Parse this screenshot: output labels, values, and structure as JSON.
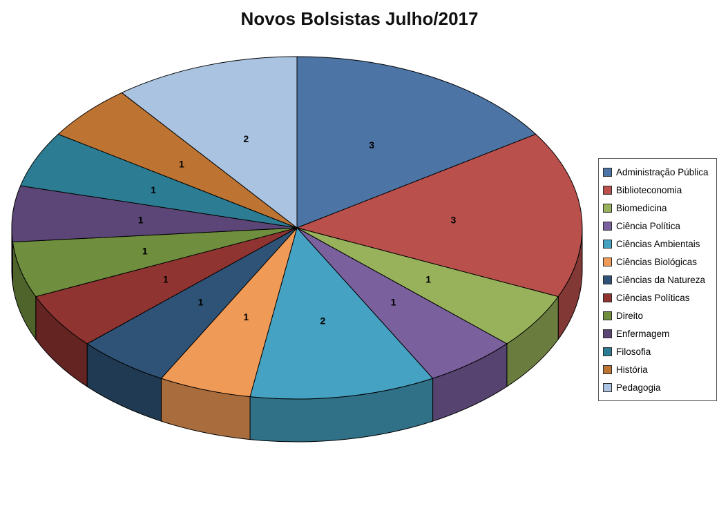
{
  "title": "Novos Bolsistas Julho/2017",
  "chart_data": {
    "type": "pie",
    "title": "Novos Bolsistas Julho/2017",
    "effect": "3d",
    "direction": "clockwise",
    "start_angle_deg": 0,
    "total": 19,
    "data_labels_shown": true,
    "legend_position": "right",
    "labels": [
      "Administração Pública",
      "Biblioteconomia",
      "Biomedicina",
      "Ciência Política",
      "Ciências Ambientais",
      "Ciências Biológicas",
      "Ciências da Natureza",
      "Ciências Políticas",
      "Direito",
      "Enfermagem",
      "Filosofia",
      "História",
      "Pedagogia"
    ],
    "values": [
      3,
      3,
      1,
      1,
      2,
      1,
      1,
      1,
      1,
      1,
      1,
      1,
      2
    ],
    "colors": [
      "#4C74A4",
      "#B9504C",
      "#97B25A",
      "#7B609E",
      "#46A2C2",
      "#F09A57",
      "#2F5377",
      "#8F3431",
      "#6F8F3E",
      "#5C4677",
      "#2C7D93",
      "#BD7433",
      "#AAC3E0"
    ]
  }
}
